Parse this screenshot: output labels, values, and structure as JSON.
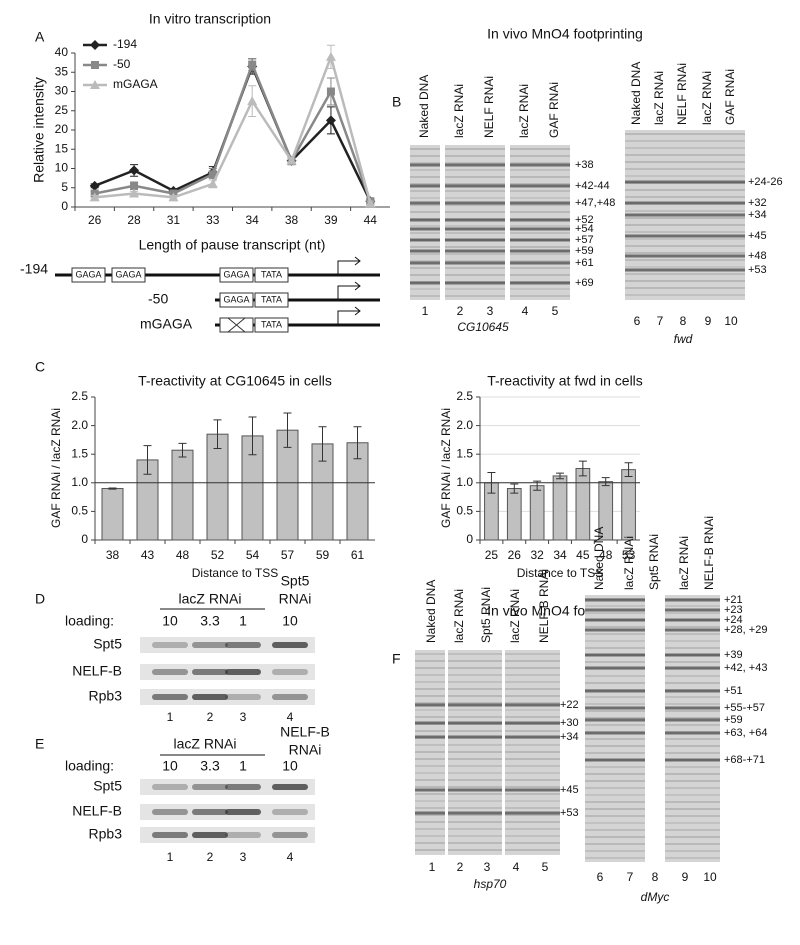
{
  "chart_data": [
    {
      "type": "line",
      "title": "In vitro transcription",
      "xlabel": "Length of pause transcript (nt)",
      "ylabel": "Relative intensity",
      "categories": [
        "26",
        "28",
        "31",
        "33",
        "34",
        "38",
        "39",
        "44"
      ],
      "ylim": [
        0,
        40
      ],
      "yticks": [
        0,
        5,
        10,
        15,
        20,
        25,
        30,
        35,
        40
      ],
      "grid": false,
      "legend": "upper left",
      "series": [
        {
          "name": "-194",
          "color": "#222222",
          "marker": "diamond",
          "values": [
            5.5,
            9.5,
            4.2,
            9,
            36.5,
            12,
            22.5,
            1.5
          ],
          "errors": [
            0.5,
            1.5,
            0.5,
            1.5,
            2,
            1,
            3.5,
            0.5
          ]
        },
        {
          "name": "-50",
          "color": "#888888",
          "marker": "square",
          "values": [
            3.5,
            5.5,
            3.5,
            8.5,
            37,
            12,
            30,
            1.5
          ],
          "errors": [
            0.5,
            1,
            0.5,
            1.5,
            1.5,
            0.5,
            3.5,
            0.5
          ]
        },
        {
          "name": "mGAGA",
          "color": "#bbbbbb",
          "marker": "triangle",
          "values": [
            2.5,
            3.5,
            2.5,
            6,
            27.5,
            12,
            39,
            1
          ],
          "errors": [
            0.5,
            0.5,
            0.5,
            1,
            4,
            0.5,
            3,
            0.5
          ]
        }
      ]
    },
    {
      "type": "bar",
      "title": "T-reactivity at CG10645 in cells",
      "xlabel": "Distance to TSS",
      "ylabel": "GAF RNAi / lacZ RNAi",
      "categories": [
        "38",
        "43",
        "48",
        "52",
        "54",
        "57",
        "59",
        "61"
      ],
      "values": [
        0.9,
        1.4,
        1.57,
        1.85,
        1.82,
        1.92,
        1.68,
        1.7
      ],
      "errors": [
        0.01,
        0.25,
        0.12,
        0.25,
        0.33,
        0.3,
        0.3,
        0.28
      ],
      "color": "#c0c0c0",
      "reference_line": 1,
      "grid": false,
      "ylim": [
        0,
        2.5
      ],
      "yticks": [
        0,
        0.5,
        {
          "value": 1,
          "label": "1.0"
        },
        1.5,
        {
          "value": 2,
          "label": "2.0"
        },
        2.5
      ]
    },
    {
      "type": "bar",
      "title": "T-reactivity at fwd in cells",
      "xlabel": "Distance to TSS",
      "ylabel": "GAF RNAi / lacZ RNAi",
      "categories": [
        "25",
        "26",
        "32",
        "34",
        "45",
        "48",
        "53"
      ],
      "values": [
        1.0,
        0.9,
        0.95,
        1.12,
        1.25,
        1.02,
        1.23
      ],
      "errors": [
        0.18,
        0.08,
        0.08,
        0.05,
        0.13,
        0.07,
        0.12
      ],
      "color": "#c0c0c0",
      "reference_line": 1,
      "grid": true,
      "ylim": [
        0,
        2.5
      ],
      "yticks": [
        0,
        0.5,
        {
          "value": 1,
          "label": "1.0"
        },
        1.5,
        {
          "value": 2,
          "label": "2.0"
        },
        2.5
      ]
    }
  ],
  "panels": {
    "letters": [
      "A",
      "B",
      "C",
      "D",
      "E",
      "F"
    ],
    "promoters": [
      {
        "label": "-194",
        "boxes": [
          "GAGA",
          "GAGA",
          "GAGA",
          "TATA"
        ]
      },
      {
        "label": "-50",
        "boxes": [
          "GAGA",
          "TATA"
        ]
      },
      {
        "label": "mGAGA",
        "boxes": [
          "TATA"
        ]
      }
    ],
    "B": {
      "title": "In vivo MnO4 footprinting",
      "gels": [
        {
          "lanes": [
            "Naked DNA",
            "lacZ RNAi",
            "NELF RNAi",
            "lacZ RNAi",
            "GAF RNAi"
          ],
          "numbers": [
            "1",
            "2",
            "3",
            "4",
            "5"
          ],
          "gene": "CG10645",
          "bands": [
            "+38",
            "+42-44",
            "+47,+48",
            "+52",
            "+54",
            "+57",
            "+59",
            "+61",
            "+69"
          ]
        },
        {
          "lanes": [
            "Naked DNA",
            "lacZ RNAi",
            "NELF RNAi",
            "lacZ RNAi",
            "GAF RNAi"
          ],
          "numbers": [
            "6",
            "7",
            "8",
            "9",
            "10"
          ],
          "gene": "fwd",
          "bands": [
            "+24-26",
            "+32",
            "+34",
            "+45",
            "+48",
            "+53"
          ]
        }
      ]
    },
    "D": {
      "header": "lacZ RNAi",
      "header2": [
        "Spt5",
        "RNAi"
      ],
      "loading": "loading:",
      "loads": [
        "10",
        "3.3",
        "1",
        "10"
      ],
      "blots": [
        "Spt5",
        "NELF-B",
        "Rpb3"
      ],
      "numbers": [
        "1",
        "2",
        "3",
        "4"
      ]
    },
    "E": {
      "header": "lacZ RNAi",
      "header2": [
        "NELF-B",
        "RNAi"
      ],
      "loading": "loading:",
      "loads": [
        "10",
        "3.3",
        "1",
        "10"
      ],
      "blots": [
        "Spt5",
        "NELF-B",
        "Rpb3"
      ],
      "numbers": [
        "1",
        "2",
        "3",
        "4"
      ]
    },
    "F": {
      "title": "In vivo MnO4 footprinting",
      "gels": [
        {
          "lanes": [
            "Naked DNA",
            "lacZ RNAi",
            "Spt5 RNAi",
            "lacZ RNAi",
            "NELF-B RNAi"
          ],
          "numbers": [
            "1",
            "2",
            "3",
            "4",
            "5"
          ],
          "gene": "hsp70",
          "bands": [
            "+22",
            "+30",
            "+34",
            "+45",
            "+53"
          ]
        },
        {
          "lanes": [
            "Naked DNA",
            "lacZ RNAi",
            "Spt5 RNAi",
            "lacZ RNAi",
            "NELF-B RNAi"
          ],
          "numbers": [
            "6",
            "7",
            "8",
            "9",
            "10"
          ],
          "gene": "dMyc",
          "bands": [
            "+21",
            "+23",
            "+24",
            "+28, +29",
            "+39",
            "+42, +43",
            "+51",
            "+55-+57",
            "+59",
            "+63, +64",
            "+68-+71"
          ]
        }
      ]
    }
  }
}
